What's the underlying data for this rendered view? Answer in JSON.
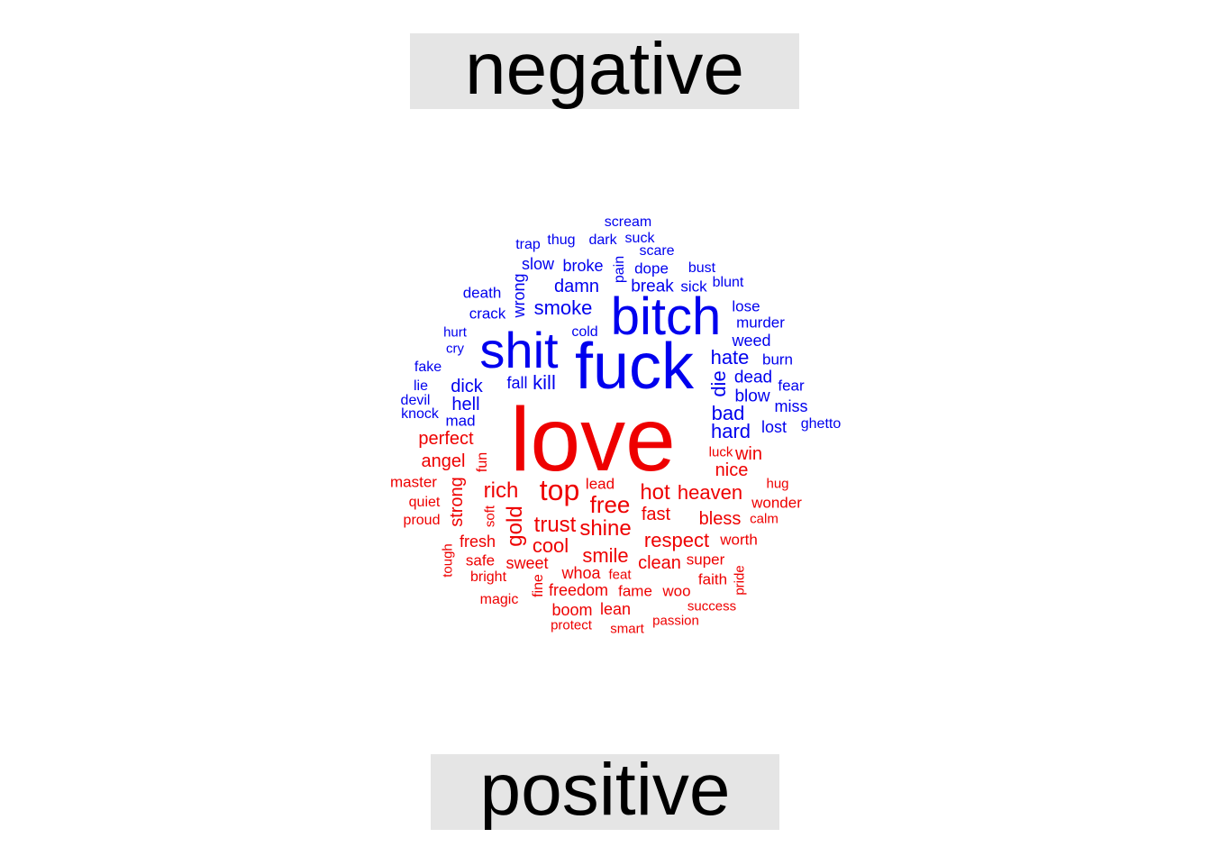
{
  "labels": {
    "top": "negative",
    "bottom": "positive"
  },
  "colors": {
    "negative": "#0000ee",
    "positive": "#ee0000",
    "label_bg": "#e5e5e5"
  },
  "negative_words": [
    "bitch",
    "fuck",
    "shit",
    "smoke",
    "damn",
    "hate",
    "bad",
    "hard",
    "die",
    "kill",
    "dick",
    "hell",
    "fall",
    "mad",
    "dead",
    "blow",
    "lost",
    "miss",
    "fear",
    "burn",
    "weed",
    "murder",
    "lose",
    "blunt",
    "sick",
    "break",
    "bust",
    "dope",
    "scare",
    "suck",
    "dark",
    "thug",
    "trap",
    "scream",
    "slow",
    "broke",
    "pain",
    "wrong",
    "death",
    "crack",
    "cold",
    "hurt",
    "cry",
    "fake",
    "lie",
    "devil",
    "knock",
    "ghetto"
  ],
  "positive_words": [
    "love",
    "top",
    "rich",
    "free",
    "hot",
    "heaven",
    "nice",
    "win",
    "luck",
    "trust",
    "shine",
    "gold",
    "perfect",
    "angel",
    "fun",
    "strong",
    "master",
    "quiet",
    "proud",
    "soft",
    "lead",
    "fast",
    "bless",
    "hug",
    "wonder",
    "calm",
    "cool",
    "smile",
    "respect",
    "worth",
    "fresh",
    "tough",
    "safe",
    "sweet",
    "clean",
    "super",
    "whoa",
    "feat",
    "faith",
    "pride",
    "bright",
    "magic",
    "fine",
    "freedom",
    "fame",
    "woo",
    "boom",
    "lean",
    "success",
    "protect",
    "smart",
    "passion"
  ]
}
